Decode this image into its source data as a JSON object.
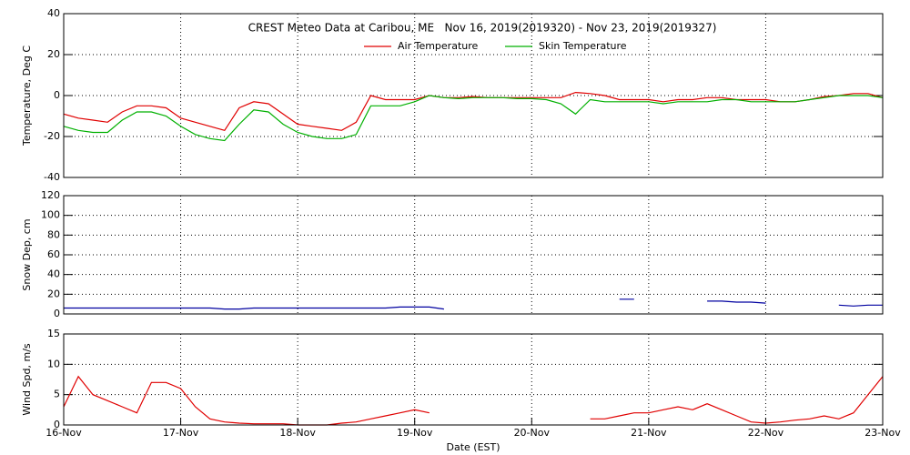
{
  "chart_data": [
    {
      "type": "line",
      "title": "CREST Meteo Data at Caribou, ME   Nov 16, 2019(2019320) - Nov 23, 2019(2019327)",
      "ylabel": "Temperature, Deg C",
      "ylim": [
        -40,
        40
      ],
      "yticks": [
        -40,
        -20,
        0,
        20,
        40
      ],
      "grid": true,
      "x": [
        0,
        0.125,
        0.25,
        0.375,
        0.5,
        0.625,
        0.75,
        0.875,
        1,
        1.125,
        1.25,
        1.375,
        1.5,
        1.625,
        1.75,
        1.875,
        2,
        2.125,
        2.25,
        2.375,
        2.5,
        2.625,
        2.75,
        2.875,
        3,
        3.125,
        3.25,
        3.375,
        3.5,
        3.625,
        3.75,
        3.875,
        4,
        4.125,
        4.25,
        4.375,
        4.5,
        4.625,
        4.75,
        4.875,
        5,
        5.125,
        5.25,
        5.375,
        5.5,
        5.625,
        5.75,
        5.875,
        6,
        6.125,
        6.25,
        6.375,
        6.5,
        6.625,
        6.75,
        6.875,
        7
      ],
      "series": [
        {
          "name": "Air Temperature",
          "color": "#e00000",
          "values": [
            -9,
            -11,
            -12,
            -13,
            -8,
            -5,
            -5,
            -6,
            -11,
            -13,
            -15,
            -17,
            -6,
            -3,
            -4,
            -9,
            -14,
            -15,
            -16,
            -17,
            -13,
            0,
            -2,
            -2,
            -2,
            0,
            -1,
            -1,
            -0.5,
            -1,
            -1,
            -1,
            -1,
            -1,
            -1,
            1.5,
            1,
            0,
            -2,
            -2,
            -2,
            -3,
            -2,
            -2,
            -1,
            -1,
            -2,
            -2,
            -2,
            -3,
            -3,
            -2,
            -0.5,
            0,
            1,
            1,
            -1
          ]
        },
        {
          "name": "Skin Temperature",
          "color": "#00b000",
          "values": [
            -15,
            -17,
            -18,
            -18,
            -12,
            -8,
            -8,
            -10,
            -15,
            -19,
            -21,
            -22,
            -14,
            -7,
            -8,
            -14,
            -18,
            -20,
            -21,
            -21,
            -19,
            -5,
            -5,
            -5,
            -3,
            0,
            -1,
            -1.5,
            -1,
            -1,
            -1,
            -1.5,
            -1.5,
            -2,
            -4,
            -9,
            -2,
            -3,
            -3,
            -3,
            -3,
            -4,
            -3,
            -3,
            -3,
            -2,
            -2,
            -3,
            -3,
            -3,
            -3,
            -2,
            -1,
            0,
            0,
            0,
            -1
          ]
        }
      ]
    },
    {
      "type": "line",
      "ylabel": "Snow Dep, cm",
      "ylim": [
        0,
        120
      ],
      "yticks": [
        0,
        20,
        40,
        60,
        80,
        100,
        120
      ],
      "grid": true,
      "x": [
        0,
        0.125,
        0.25,
        0.375,
        0.5,
        0.625,
        0.75,
        0.875,
        1,
        1.125,
        1.25,
        1.375,
        1.5,
        1.625,
        1.75,
        1.875,
        2,
        2.125,
        2.25,
        2.375,
        2.5,
        2.625,
        2.75,
        2.875,
        3,
        3.125,
        3.25,
        3.375,
        3.5,
        3.625,
        3.75,
        3.875,
        4,
        4.125,
        4.25,
        4.375,
        4.5,
        4.625,
        4.75,
        4.875,
        5,
        5.125,
        5.25,
        5.375,
        5.5,
        5.625,
        5.75,
        5.875,
        6,
        6.125,
        6.25,
        6.375,
        6.5,
        6.625,
        6.75,
        6.875,
        7
      ],
      "series": [
        {
          "color": "#0000a0",
          "values": [
            6,
            6,
            6,
            6,
            6,
            6,
            6,
            6,
            6,
            6,
            6,
            5,
            5,
            6,
            6,
            6,
            6,
            6,
            6,
            6,
            6,
            6,
            6,
            7,
            7,
            7,
            5,
            null,
            null,
            null,
            null,
            null,
            null,
            null,
            null,
            null,
            null,
            null,
            15,
            15,
            null,
            null,
            null,
            null,
            13,
            13,
            12,
            12,
            11,
            null,
            null,
            null,
            null,
            9,
            8,
            9,
            9
          ]
        }
      ]
    },
    {
      "type": "line",
      "ylabel": "Wind Spd, m/s",
      "xlabel": "Date (EST)",
      "ylim": [
        0,
        15
      ],
      "yticks": [
        0,
        5,
        10,
        15
      ],
      "grid": true,
      "xlim": [
        0,
        7
      ],
      "xticks": [
        {
          "value": 0,
          "label": "16-Nov"
        },
        {
          "value": 1,
          "label": "17-Nov"
        },
        {
          "value": 2,
          "label": "18-Nov"
        },
        {
          "value": 3,
          "label": "19-Nov"
        },
        {
          "value": 4,
          "label": "20-Nov"
        },
        {
          "value": 5,
          "label": "21-Nov"
        },
        {
          "value": 6,
          "label": "22-Nov"
        },
        {
          "value": 7,
          "label": "23-Nov"
        }
      ],
      "x": [
        0,
        0.125,
        0.25,
        0.375,
        0.5,
        0.625,
        0.75,
        0.875,
        1,
        1.125,
        1.25,
        1.375,
        1.5,
        1.625,
        1.75,
        1.875,
        2,
        2.125,
        2.25,
        2.375,
        2.5,
        2.625,
        2.75,
        2.875,
        3,
        3.125,
        3.25,
        3.375,
        3.5,
        3.625,
        3.75,
        3.875,
        4,
        4.125,
        4.25,
        4.375,
        4.5,
        4.625,
        4.75,
        4.875,
        5,
        5.125,
        5.25,
        5.375,
        5.5,
        5.625,
        5.75,
        5.875,
        6,
        6.125,
        6.25,
        6.375,
        6.5,
        6.625,
        6.75,
        6.875,
        7
      ],
      "series": [
        {
          "color": "#e00000",
          "values": [
            3,
            8,
            5,
            4,
            3,
            2,
            7,
            7,
            6,
            3,
            1,
            0.5,
            0.3,
            0.2,
            0.2,
            0.2,
            0,
            0,
            0,
            0.3,
            0.5,
            1,
            1.5,
            2,
            2.5,
            2,
            null,
            null,
            null,
            null,
            null,
            null,
            null,
            null,
            null,
            null,
            1,
            1,
            1.5,
            2,
            2,
            2.5,
            3,
            2.5,
            3.5,
            2.5,
            1.5,
            0.5,
            0.3,
            0.5,
            0.8,
            1,
            1.5,
            1,
            2,
            5,
            8
          ]
        }
      ]
    }
  ]
}
